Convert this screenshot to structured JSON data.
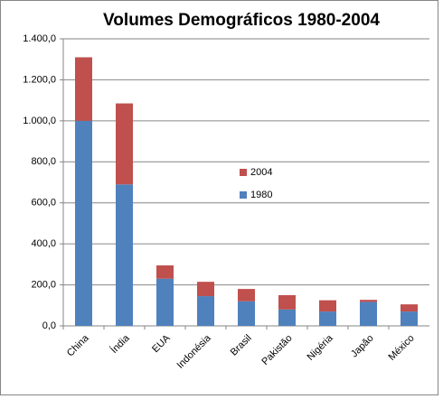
{
  "chart_data": {
    "type": "bar",
    "stacked": true,
    "title": "Volumes Demográficos 1980-2004",
    "categories": [
      "China",
      "Índia",
      "EUA",
      "Indonésia",
      "Brasil",
      "Pakistão",
      "Nigéria",
      "Japão",
      "México"
    ],
    "series": [
      {
        "name": "1980",
        "color": "#4f81bd",
        "values": [
          1000,
          690,
          230,
          145,
          120,
          80,
          70,
          117,
          70
        ]
      },
      {
        "name": "2004",
        "color": "#c0504d",
        "values": [
          310,
          395,
          65,
          70,
          60,
          70,
          55,
          10,
          35
        ]
      }
    ],
    "ylim": [
      0,
      1400
    ],
    "yticks": [
      {
        "value": 0,
        "label": "0,0"
      },
      {
        "value": 200,
        "label": "200,0"
      },
      {
        "value": 400,
        "label": "400,0"
      },
      {
        "value": 600,
        "label": "600,0"
      },
      {
        "value": 800,
        "label": "800,0"
      },
      {
        "value": 1000,
        "label": "1.000,0"
      },
      {
        "value": 1200,
        "label": "1.200,0"
      },
      {
        "value": 1400,
        "label": "1.400,0"
      }
    ],
    "grid": true
  }
}
